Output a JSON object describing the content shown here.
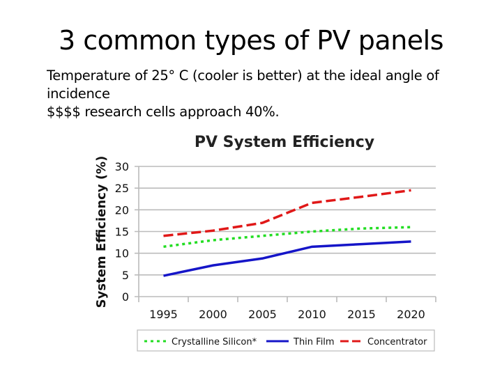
{
  "slide": {
    "title": "3 common types of PV panels",
    "lines": [
      "Temperature of 25° C (cooler is better) at the ideal angle of",
      "incidence",
      "$$$$ research cells approach 40%."
    ]
  },
  "chart_data": {
    "type": "line",
    "title": "PV System Efficiency",
    "xlabel": "",
    "ylabel": "System Efficiency (%)",
    "categories": [
      "1995",
      "2000",
      "2005",
      "2010",
      "2015",
      "2020"
    ],
    "ylim": [
      0,
      30
    ],
    "yticks": [
      "0",
      "5",
      "10",
      "15",
      "20",
      "25",
      "30"
    ],
    "grid": true,
    "legend_position": "bottom",
    "series": [
      {
        "name": "Crystalline Silicon*",
        "color": "#22dd22",
        "style": "dotted",
        "values": [
          11.5,
          13.0,
          14.0,
          15.0,
          15.7,
          16.0
        ]
      },
      {
        "name": "Thin Film",
        "color": "#1515c8",
        "style": "solid",
        "values": [
          4.8,
          7.2,
          8.8,
          11.5,
          12.1,
          12.7
        ]
      },
      {
        "name": "Concentrator",
        "color": "#e01818",
        "style": "dashed",
        "values": [
          14.0,
          15.2,
          17.0,
          21.6,
          23.0,
          24.5
        ]
      }
    ]
  }
}
